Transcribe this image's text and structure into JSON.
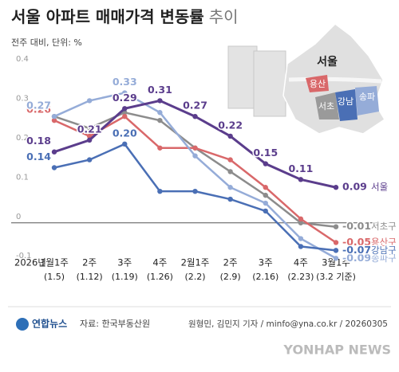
{
  "chart_data": {
    "type": "line",
    "title": "서울 아파트 매매가격 변동률",
    "title_suffix": "추이",
    "subtitle": "전주 대비, 단위: %",
    "year_label": "2026년",
    "categories": [
      "1월1주",
      "2주",
      "3주",
      "4주",
      "2월1주",
      "2주",
      "3주",
      "4주",
      "3월1주"
    ],
    "category_dates": [
      "(1.5)",
      "(1.12)",
      "(1.19)",
      "(1.26)",
      "(2.2)",
      "(2.9)",
      "(2.16)",
      "(2.23)",
      "(3.2 기준)"
    ],
    "ylim": [
      -0.14,
      0.42
    ],
    "yticks": [
      0.4,
      0.3,
      0.2,
      0.1,
      0,
      -0.1
    ],
    "series": [
      {
        "name": "서초구",
        "color": "#8c8c8c",
        "values": [
          0.27,
          0.24,
          0.28,
          0.26,
          0.19,
          0.13,
          0.07,
          0.0,
          -0.01
        ],
        "value_labels": [
          null,
          null,
          null,
          null,
          null,
          null,
          null,
          null,
          "-0.01"
        ]
      },
      {
        "name": "용산구",
        "color": "#d9686a",
        "values": [
          0.26,
          0.22,
          0.27,
          0.19,
          0.19,
          0.16,
          0.09,
          0.01,
          -0.05
        ],
        "value_labels": [
          "0.26",
          null,
          null,
          null,
          null,
          null,
          null,
          null,
          "-0.05"
        ]
      },
      {
        "name": "송파구",
        "color": "#95acd8",
        "values": [
          0.27,
          0.31,
          0.33,
          0.28,
          0.17,
          0.09,
          0.05,
          -0.04,
          -0.09
        ],
        "value_labels": [
          "0.27",
          null,
          "0.33",
          null,
          null,
          null,
          null,
          null,
          "-0.09"
        ]
      },
      {
        "name": "강남구",
        "color": "#4a6fb5",
        "values": [
          0.14,
          0.16,
          0.2,
          0.08,
          0.08,
          0.06,
          0.03,
          -0.06,
          -0.07
        ],
        "value_labels": [
          "0.14",
          null,
          "0.20",
          null,
          null,
          null,
          null,
          null,
          "-0.07"
        ]
      },
      {
        "name": "서울",
        "color": "#5b3d8c",
        "values": [
          0.18,
          0.21,
          0.29,
          0.31,
          0.27,
          0.22,
          0.15,
          0.11,
          0.09
        ],
        "value_labels": [
          "0.18",
          "0.21",
          "0.29",
          "0.31",
          "0.27",
          "0.22",
          "0.15",
          "0.11",
          "0.09"
        ]
      }
    ],
    "map_labels": [
      "서울",
      "용산",
      "서초",
      "강남",
      "송파"
    ]
  },
  "footer": {
    "logo": "연합뉴스",
    "source": "자료: 한국부동산원",
    "credit": "원형민, 김민지 기자 / minfo@yna.co.kr / 20260305",
    "watermark": "YONHAP NEWS"
  }
}
